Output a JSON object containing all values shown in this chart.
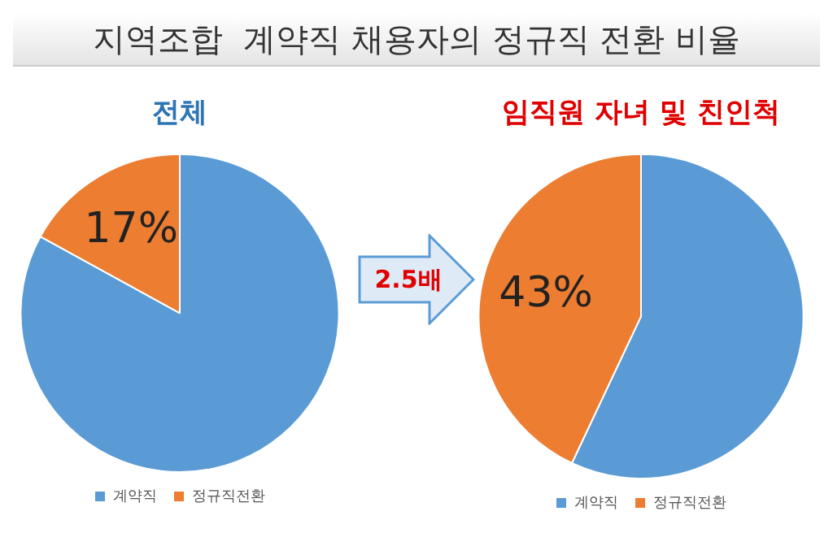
{
  "chart_data": [
    {
      "type": "pie",
      "title": "전체",
      "categories": [
        "계약직",
        "정규직전환"
      ],
      "values": [
        83,
        17
      ],
      "colors": [
        "#5b9bd5",
        "#ed7d31"
      ],
      "value_labels": [
        null,
        "17%"
      ],
      "legend": "bottom",
      "annotations": [
        "지역조합  계약직 채용자의 정규직 전환 비율"
      ]
    },
    {
      "type": "pie",
      "title": "임직원 자녀 및 친인척",
      "categories": [
        "계약직",
        "정규직전환"
      ],
      "values": [
        57,
        43
      ],
      "colors": [
        "#5b9bd5",
        "#ed7d31"
      ],
      "value_labels": [
        null,
        "43%"
      ],
      "legend": "bottom",
      "annotations": [
        "2.5배"
      ]
    }
  ]
}
